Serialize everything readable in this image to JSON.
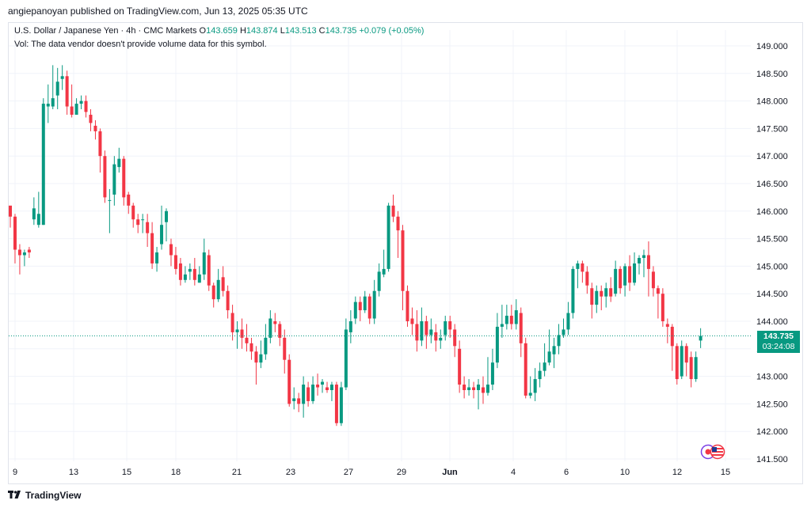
{
  "header": {
    "publisher": "angiepanoyan published on TradingView.com, Jun 13, 2025 05:35 UTC"
  },
  "legend": {
    "symbol": "U.S. Dollar / Japanese Yen · 4h · CMC Markets",
    "o_label": "O",
    "o_val": "143.659",
    "h_label": "H",
    "h_val": "143.874",
    "l_label": "L",
    "l_val": "143.513",
    "c_label": "C",
    "c_val": "143.735",
    "change": "+0.079 (+0.05%)",
    "volume_note": "Vol: The data vendor doesn't provide volume data for this symbol."
  },
  "last_price": {
    "value": "143.735",
    "countdown": "03:24:08"
  },
  "footer": {
    "brand": "TradingView"
  },
  "colors": {
    "up": "#089981",
    "down": "#f23645",
    "grid": "#f0f3fa",
    "axis_text": "#131722"
  },
  "icons": {
    "logo": "tradingview-logo-icon",
    "flags": "us-japan-flag-icon"
  },
  "chart_data": {
    "type": "candlestick",
    "interval": "4h",
    "symbol": "USDJPY",
    "ylim": [
      141.5,
      149.0
    ],
    "y_ticks": [
      "149.000",
      "148.500",
      "148.000",
      "147.500",
      "147.000",
      "146.500",
      "146.000",
      "145.500",
      "145.000",
      "144.500",
      "144.000",
      "143.500",
      "143.000",
      "142.500",
      "142.000",
      "141.500"
    ],
    "x_ticks": [
      "9",
      "13",
      "15",
      "18",
      "21",
      "23",
      "27",
      "29",
      "Jun",
      "4",
      "6",
      "10",
      "12",
      "15"
    ],
    "last_close": 143.735,
    "candles": [
      [
        146.1,
        145.9,
        146.05,
        145.7
      ],
      [
        145.9,
        145.3,
        145.95,
        145.05
      ],
      [
        145.3,
        145.2,
        145.4,
        144.85
      ],
      [
        145.2,
        145.25,
        145.3,
        145.0
      ],
      [
        145.3,
        145.25,
        145.35,
        145.15
      ],
      [
        145.85,
        146.05,
        146.25,
        145.75
      ],
      [
        145.75,
        145.95,
        146.35,
        145.7
      ],
      [
        145.75,
        147.95,
        148.05,
        145.75
      ],
      [
        147.9,
        147.95,
        148.3,
        147.6
      ],
      [
        147.9,
        148.05,
        148.65,
        147.85
      ],
      [
        148.1,
        148.35,
        148.6,
        147.85
      ],
      [
        148.4,
        148.45,
        148.65,
        148.2
      ],
      [
        148.45,
        147.9,
        148.55,
        147.75
      ],
      [
        147.9,
        147.75,
        148.3,
        147.7
      ],
      [
        147.75,
        147.95,
        148.05,
        147.8
      ],
      [
        147.95,
        148.0,
        148.1,
        147.85
      ],
      [
        148.0,
        147.8,
        148.1,
        147.7
      ],
      [
        147.75,
        147.6,
        147.85,
        147.45
      ],
      [
        147.55,
        147.45,
        147.65,
        147.3
      ],
      [
        147.45,
        147.0,
        147.5,
        146.7
      ],
      [
        147.0,
        146.25,
        147.1,
        146.15
      ],
      [
        146.2,
        146.2,
        146.4,
        145.6
      ],
      [
        146.3,
        146.85,
        147.0,
        146.1
      ],
      [
        146.8,
        146.95,
        147.15,
        146.7
      ],
      [
        146.95,
        146.25,
        147.0,
        146.1
      ],
      [
        146.3,
        146.1,
        146.35,
        145.95
      ],
      [
        146.1,
        145.85,
        146.15,
        145.7
      ],
      [
        145.85,
        145.75,
        145.95,
        145.6
      ],
      [
        145.85,
        145.85,
        145.95,
        145.6
      ],
      [
        145.8,
        145.6,
        145.95,
        145.35
      ],
      [
        145.6,
        145.05,
        145.8,
        144.95
      ],
      [
        145.05,
        145.25,
        145.35,
        144.9
      ],
      [
        145.4,
        145.75,
        146.1,
        145.3
      ],
      [
        145.8,
        146.0,
        146.05,
        145.45
      ],
      [
        145.4,
        145.2,
        145.5,
        145.0
      ],
      [
        145.2,
        144.95,
        145.35,
        144.85
      ],
      [
        145.05,
        144.75,
        145.15,
        144.65
      ],
      [
        144.75,
        144.85,
        145.0,
        144.7
      ],
      [
        144.9,
        144.95,
        145.05,
        144.75
      ],
      [
        144.95,
        144.75,
        145.15,
        144.65
      ],
      [
        144.7,
        144.85,
        145.0,
        144.7
      ],
      [
        144.85,
        145.25,
        145.5,
        144.75
      ],
      [
        145.2,
        144.65,
        145.3,
        144.55
      ],
      [
        144.65,
        144.4,
        144.7,
        144.25
      ],
      [
        144.4,
        144.75,
        144.95,
        144.35
      ],
      [
        144.8,
        144.55,
        145.0,
        144.45
      ],
      [
        144.55,
        144.2,
        144.65,
        144.05
      ],
      [
        144.15,
        143.8,
        144.3,
        143.65
      ],
      [
        143.8,
        143.85,
        144.0,
        143.5
      ],
      [
        143.85,
        143.7,
        144.05,
        143.5
      ],
      [
        143.7,
        143.6,
        143.95,
        143.45
      ],
      [
        143.6,
        143.45,
        143.7,
        143.3
      ],
      [
        143.45,
        143.25,
        143.55,
        142.85
      ],
      [
        143.25,
        143.4,
        143.65,
        143.15
      ],
      [
        143.4,
        143.7,
        143.95,
        143.3
      ],
      [
        143.7,
        144.05,
        144.2,
        143.6
      ],
      [
        144.0,
        143.95,
        144.15,
        143.8
      ],
      [
        143.95,
        143.7,
        144.0,
        143.55
      ],
      [
        143.7,
        143.3,
        143.85,
        143.05
      ],
      [
        143.3,
        142.5,
        143.4,
        142.45
      ],
      [
        142.55,
        142.6,
        142.8,
        142.4
      ],
      [
        142.6,
        142.5,
        142.7,
        142.35
      ],
      [
        142.5,
        142.85,
        143.0,
        142.25
      ],
      [
        142.8,
        142.55,
        142.9,
        142.45
      ],
      [
        142.55,
        142.85,
        143.0,
        142.5
      ],
      [
        142.85,
        142.8,
        143.05,
        142.65
      ],
      [
        142.85,
        142.9,
        142.95,
        142.7
      ],
      [
        142.8,
        142.75,
        142.9,
        142.7
      ],
      [
        142.75,
        142.85,
        142.9,
        142.55
      ],
      [
        142.85,
        142.15,
        142.9,
        142.1
      ],
      [
        142.15,
        142.8,
        142.9,
        142.1
      ],
      [
        142.8,
        143.85,
        144.05,
        142.75
      ],
      [
        143.8,
        144.0,
        144.2,
        143.6
      ],
      [
        144.05,
        144.35,
        144.45,
        143.95
      ],
      [
        144.35,
        144.2,
        144.45,
        144.0
      ],
      [
        144.2,
        144.45,
        144.55,
        144.15
      ],
      [
        144.45,
        144.05,
        144.5,
        143.95
      ],
      [
        144.05,
        144.55,
        144.75,
        143.95
      ],
      [
        144.55,
        144.9,
        145.05,
        144.45
      ],
      [
        144.85,
        144.95,
        145.3,
        144.8
      ],
      [
        144.95,
        146.1,
        146.15,
        144.9
      ],
      [
        146.1,
        145.9,
        146.3,
        145.8
      ],
      [
        145.9,
        145.65,
        146.0,
        145.15
      ],
      [
        145.65,
        144.55,
        145.75,
        144.2
      ],
      [
        144.55,
        144.0,
        144.65,
        143.9
      ],
      [
        144.05,
        143.95,
        144.25,
        143.75
      ],
      [
        143.95,
        143.65,
        144.2,
        143.45
      ],
      [
        143.65,
        144.0,
        144.25,
        143.55
      ],
      [
        144.0,
        143.75,
        144.1,
        143.5
      ],
      [
        143.75,
        143.85,
        144.05,
        143.6
      ],
      [
        143.8,
        143.65,
        143.95,
        143.45
      ],
      [
        143.65,
        143.7,
        143.85,
        143.5
      ],
      [
        143.75,
        144.0,
        144.1,
        143.65
      ],
      [
        144.0,
        143.85,
        144.1,
        143.7
      ],
      [
        143.85,
        143.55,
        143.95,
        143.35
      ],
      [
        143.5,
        142.85,
        143.65,
        142.7
      ],
      [
        142.85,
        142.75,
        143.0,
        142.6
      ],
      [
        142.75,
        142.8,
        142.95,
        142.65
      ],
      [
        142.8,
        142.75,
        142.9,
        142.6
      ],
      [
        142.75,
        142.85,
        142.95,
        142.4
      ],
      [
        142.8,
        142.7,
        143.0,
        142.5
      ],
      [
        142.7,
        142.85,
        143.35,
        142.65
      ],
      [
        142.85,
        143.25,
        143.5,
        142.75
      ],
      [
        143.25,
        143.9,
        144.15,
        143.15
      ],
      [
        143.9,
        143.95,
        144.3,
        143.7
      ],
      [
        143.95,
        144.1,
        144.3,
        143.85
      ],
      [
        144.1,
        143.95,
        144.3,
        143.85
      ],
      [
        143.95,
        144.2,
        144.4,
        143.85
      ],
      [
        144.15,
        143.6,
        144.25,
        143.35
      ],
      [
        143.6,
        142.65,
        143.7,
        142.6
      ],
      [
        142.65,
        142.7,
        143.0,
        142.6
      ],
      [
        142.7,
        142.95,
        143.15,
        142.55
      ],
      [
        142.95,
        143.1,
        143.25,
        142.8
      ],
      [
        143.1,
        143.25,
        143.6,
        143.0
      ],
      [
        143.25,
        143.45,
        143.85,
        143.2
      ],
      [
        143.4,
        143.55,
        143.7,
        143.15
      ],
      [
        143.55,
        143.75,
        143.95,
        143.4
      ],
      [
        143.75,
        143.85,
        144.05,
        143.7
      ],
      [
        143.85,
        144.15,
        144.35,
        143.75
      ],
      [
        144.15,
        144.95,
        145.0,
        144.05
      ],
      [
        144.95,
        145.05,
        145.1,
        144.6
      ],
      [
        145.05,
        144.9,
        145.1,
        144.7
      ],
      [
        144.9,
        144.65,
        145.0,
        144.5
      ],
      [
        144.6,
        144.3,
        144.7,
        144.05
      ],
      [
        144.3,
        144.55,
        144.65,
        144.15
      ],
      [
        144.55,
        144.45,
        144.65,
        144.2
      ],
      [
        144.45,
        144.6,
        144.7,
        144.25
      ],
      [
        144.6,
        144.45,
        144.8,
        144.35
      ],
      [
        144.5,
        144.95,
        145.1,
        144.45
      ],
      [
        144.95,
        144.6,
        145.0,
        144.5
      ],
      [
        144.65,
        145.0,
        145.05,
        144.45
      ],
      [
        145.0,
        144.7,
        145.2,
        144.55
      ],
      [
        144.7,
        145.05,
        145.25,
        144.65
      ],
      [
        145.05,
        145.15,
        145.2,
        144.85
      ],
      [
        145.15,
        145.2,
        145.3,
        144.8
      ],
      [
        145.2,
        144.95,
        145.45,
        144.45
      ],
      [
        144.9,
        144.6,
        145.0,
        144.45
      ],
      [
        144.6,
        144.5,
        144.65,
        144.05
      ],
      [
        144.5,
        144.0,
        144.6,
        143.9
      ],
      [
        143.95,
        143.9,
        144.05,
        143.6
      ],
      [
        143.9,
        143.55,
        143.95,
        143.1
      ],
      [
        143.55,
        142.95,
        143.6,
        142.85
      ],
      [
        143.0,
        143.55,
        143.65,
        142.95
      ],
      [
        143.55,
        143.25,
        143.6,
        143.0
      ],
      [
        143.35,
        142.95,
        143.45,
        142.8
      ],
      [
        142.95,
        143.35,
        143.45,
        142.9
      ],
      [
        143.65,
        143.735,
        143.874,
        143.513
      ]
    ]
  }
}
